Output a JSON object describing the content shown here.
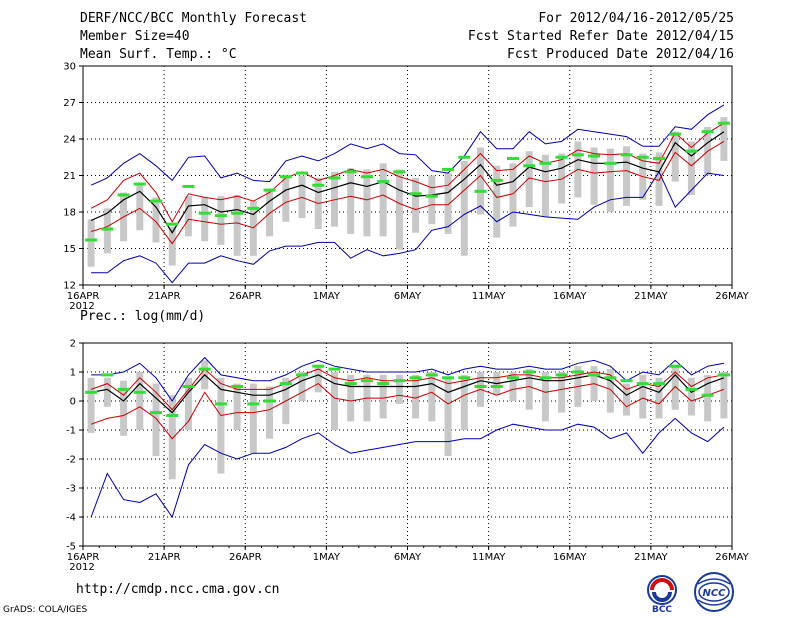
{
  "header": {
    "title": "DERF/NCC/BCC Monthly Forecast",
    "member_size": "Member Size=40",
    "variable": "Mean Surf. Temp.: °C",
    "period": "For 2012/04/16-2012/05/25",
    "refer_date": "Fcst Started Refer Date 2012/04/15",
    "produced_date": "Fcst Produced Date 2012/04/16"
  },
  "footer": {
    "url": "http://cmdp.ncc.cma.gov.cn",
    "credit": "GrADS: COLA/IGES",
    "logo_bcc": "BCC",
    "logo_ncc": "NCC"
  },
  "colors": {
    "envelope": "#0000aa",
    "spread": "#cc0000",
    "mean": "#000000",
    "box": "#c8c8c8",
    "marker": "#33dd33"
  },
  "chart_data": [
    {
      "type": "box-ensemble",
      "title": "Mean Surf. Temp.: °C",
      "ylim": [
        12,
        30
      ],
      "yticks": [
        12,
        15,
        18,
        21,
        24,
        27,
        30
      ],
      "xlabels": [
        "16APR",
        "21APR",
        "26APR",
        "1MAY",
        "6MAY",
        "11MAY",
        "16MAY",
        "21MAY",
        "26MAY"
      ],
      "year_label": "2012",
      "days": 40,
      "series": {
        "max": [
          20.2,
          20.8,
          22.0,
          22.8,
          21.8,
          20.6,
          22.5,
          22.6,
          20.8,
          21.2,
          20.6,
          20.5,
          22.2,
          22.6,
          22.2,
          22.8,
          23.6,
          23.2,
          23.6,
          22.8,
          22.7,
          21.4,
          21.2,
          22.6,
          24.6,
          23.2,
          23.2,
          24.6,
          23.6,
          23.8,
          24.8,
          24.6,
          24.4,
          24.2,
          23.4,
          23.4,
          25.0,
          24.8,
          26.0,
          26.8
        ],
        "upper": [
          18.3,
          19.0,
          20.6,
          21.2,
          19.6,
          17.2,
          19.5,
          19.2,
          19.0,
          19.3,
          18.9,
          19.6,
          20.8,
          21.3,
          20.6,
          21.0,
          21.5,
          21.2,
          21.5,
          20.9,
          20.5,
          20.0,
          20.2,
          21.5,
          22.8,
          21.4,
          21.5,
          22.6,
          22.0,
          22.3,
          23.1,
          22.8,
          22.7,
          22.8,
          22.2,
          22.0,
          24.5,
          23.3,
          24.5,
          25.3
        ],
        "mean": [
          17.3,
          17.9,
          19.0,
          19.7,
          18.4,
          16.3,
          18.5,
          18.6,
          18.0,
          18.2,
          17.8,
          18.9,
          19.8,
          20.2,
          19.6,
          20.0,
          20.4,
          20.1,
          20.5,
          19.8,
          19.3,
          19.4,
          19.6,
          20.7,
          21.9,
          20.2,
          20.5,
          21.7,
          21.3,
          21.6,
          22.3,
          22.0,
          22.0,
          22.1,
          21.6,
          21.3,
          23.7,
          22.6,
          23.7,
          24.6
        ],
        "lower": [
          16.4,
          16.8,
          17.6,
          18.3,
          17.2,
          15.4,
          17.4,
          17.2,
          17.0,
          17.1,
          16.7,
          17.9,
          18.8,
          19.2,
          18.7,
          19.0,
          19.3,
          19.0,
          19.4,
          18.7,
          18.2,
          18.6,
          18.6,
          19.8,
          21.0,
          19.2,
          19.5,
          20.8,
          20.5,
          20.7,
          21.5,
          21.2,
          21.3,
          21.4,
          20.9,
          20.6,
          22.9,
          21.8,
          23.0,
          23.8
        ],
        "min": [
          13.0,
          13.0,
          14.0,
          14.4,
          13.8,
          12.2,
          13.8,
          13.8,
          14.4,
          14.0,
          13.7,
          14.8,
          15.2,
          15.2,
          15.5,
          15.5,
          14.2,
          14.9,
          14.4,
          14.6,
          14.9,
          16.5,
          16.8,
          17.8,
          18.5,
          17.2,
          18.0,
          17.8,
          17.6,
          17.5,
          17.4,
          18.4,
          19.0,
          19.2,
          19.2,
          21.3,
          18.4,
          19.8,
          21.2,
          21.0
        ],
        "q_hi": [
          17.4,
          18.3,
          19.6,
          20.3,
          19.2,
          16.8,
          19.3,
          19.2,
          19.3,
          19.4,
          18.9,
          19.8,
          20.8,
          21.0,
          20.8,
          21.3,
          21.6,
          21.5,
          22.0,
          21.5,
          20.8,
          21.0,
          21.2,
          22.2,
          23.3,
          21.8,
          22.0,
          23.0,
          22.7,
          22.8,
          23.8,
          23.3,
          23.2,
          23.4,
          22.8,
          22.9,
          24.6,
          23.8,
          25.0,
          25.8
        ],
        "q_lo": [
          13.5,
          14.6,
          15.6,
          16.5,
          15.5,
          13.6,
          16.0,
          15.6,
          15.3,
          14.4,
          14.4,
          16.0,
          17.2,
          17.5,
          16.6,
          16.8,
          16.2,
          16.0,
          16.0,
          14.9,
          16.3,
          17.0,
          16.2,
          14.4,
          17.8,
          15.9,
          16.8,
          18.4,
          17.6,
          18.7,
          19.2,
          18.6,
          18.0,
          18.5,
          19.0,
          18.5,
          20.5,
          19.4,
          21.0,
          22.2
        ],
        "marker": [
          15.7,
          16.6,
          19.4,
          20.3,
          18.9,
          17.0,
          20.1,
          17.9,
          17.7,
          17.9,
          18.3,
          19.8,
          20.9,
          21.2,
          20.2,
          20.8,
          21.3,
          20.9,
          20.5,
          21.3,
          19.5,
          19.3,
          21.5,
          22.5,
          19.7,
          20.6,
          22.4,
          21.8,
          22.0,
          22.5,
          22.7,
          22.6,
          22.0,
          22.7,
          22.5,
          22.4,
          24.4,
          23.0,
          24.6,
          25.3
        ]
      }
    },
    {
      "type": "box-ensemble",
      "title": "Prec.: log(mm/d)",
      "ylim": [
        -5,
        2
      ],
      "yticks": [
        -5,
        -4,
        -3,
        -2,
        -1,
        0,
        1,
        2
      ],
      "xlabels": [
        "16APR",
        "21APR",
        "26APR",
        "1MAY",
        "6MAY",
        "11MAY",
        "16MAY",
        "21MAY",
        "26MAY"
      ],
      "year_label": "2012",
      "days": 40,
      "series": {
        "max": [
          0.9,
          0.9,
          1.0,
          1.3,
          0.8,
          0.0,
          0.9,
          1.5,
          0.9,
          0.8,
          0.7,
          0.7,
          0.9,
          1.2,
          1.4,
          1.2,
          1.1,
          1.0,
          1.0,
          1.0,
          1.0,
          1.1,
          0.9,
          1.1,
          1.2,
          1.1,
          1.1,
          1.2,
          1.1,
          1.1,
          1.3,
          1.4,
          1.2,
          0.7,
          1.0,
          0.9,
          1.4,
          0.9,
          1.2,
          1.3
        ],
        "upper": [
          0.4,
          0.6,
          0.2,
          0.8,
          0.3,
          -0.3,
          0.4,
          1.1,
          0.6,
          0.4,
          0.4,
          0.4,
          0.6,
          0.9,
          1.1,
          0.8,
          0.7,
          0.8,
          0.7,
          0.7,
          0.7,
          0.8,
          0.6,
          0.7,
          0.8,
          0.8,
          0.9,
          0.9,
          0.8,
          0.8,
          0.9,
          1.0,
          0.9,
          0.4,
          0.6,
          0.5,
          1.0,
          0.5,
          0.8,
          0.9
        ],
        "mean": [
          0.3,
          0.4,
          0.0,
          0.6,
          0.1,
          -0.4,
          0.3,
          0.9,
          0.4,
          0.3,
          0.2,
          0.2,
          0.4,
          0.7,
          0.9,
          0.6,
          0.5,
          0.5,
          0.5,
          0.5,
          0.5,
          0.6,
          0.3,
          0.5,
          0.7,
          0.6,
          0.7,
          0.8,
          0.7,
          0.7,
          0.8,
          0.9,
          0.7,
          0.2,
          0.5,
          0.3,
          0.9,
          0.3,
          0.6,
          0.8
        ],
        "lower": [
          -0.8,
          -0.6,
          -0.5,
          -0.2,
          -0.6,
          -1.3,
          -0.7,
          0.3,
          -0.5,
          -0.4,
          -0.4,
          -0.3,
          0.0,
          0.3,
          0.6,
          0.1,
          0.0,
          0.1,
          0.1,
          0.2,
          0.1,
          0.3,
          -0.1,
          0.2,
          0.4,
          0.2,
          0.4,
          0.5,
          0.3,
          0.4,
          0.5,
          0.6,
          0.4,
          -0.2,
          0.1,
          -0.1,
          0.5,
          0.0,
          0.2,
          0.4
        ],
        "min": [
          -4.0,
          -2.5,
          -3.4,
          -3.5,
          -3.2,
          -4.0,
          -2.2,
          -1.5,
          -1.8,
          -2.0,
          -1.8,
          -1.8,
          -1.6,
          -1.3,
          -1.1,
          -1.5,
          -1.8,
          -1.7,
          -1.6,
          -1.5,
          -1.4,
          -1.4,
          -1.4,
          -1.3,
          -1.3,
          -1.0,
          -0.8,
          -0.9,
          -1.0,
          -1.0,
          -0.8,
          -0.9,
          -1.3,
          -1.1,
          -1.8,
          -1.1,
          -0.6,
          -1.1,
          -1.4,
          -0.9
        ],
        "q_hi": [
          0.8,
          0.8,
          0.7,
          1.0,
          0.6,
          0.2,
          0.8,
          1.4,
          0.8,
          0.6,
          0.6,
          0.5,
          0.8,
          1.0,
          1.2,
          1.0,
          0.9,
          0.9,
          0.9,
          0.9,
          0.9,
          1.0,
          0.8,
          0.9,
          1.0,
          1.0,
          1.0,
          1.1,
          1.0,
          1.0,
          1.2,
          1.2,
          1.1,
          0.6,
          0.9,
          0.8,
          1.2,
          0.8,
          0.9,
          1.0
        ],
        "q_lo": [
          -1.1,
          -0.2,
          -1.2,
          -1.0,
          -1.9,
          -2.7,
          -1.0,
          0.4,
          -2.5,
          -1.0,
          -1.8,
          -1.3,
          -0.8,
          0.0,
          0.3,
          -1.0,
          -0.7,
          -0.7,
          -0.6,
          -0.1,
          -0.6,
          -0.7,
          -1.9,
          -1.0,
          -0.2,
          0.2,
          0.0,
          -0.3,
          -0.7,
          -0.4,
          -0.2,
          0.0,
          -0.4,
          -0.5,
          -0.6,
          -0.6,
          -0.3,
          -0.5,
          -0.7,
          -0.6
        ],
        "marker": [
          0.3,
          0.9,
          0.4,
          0.3,
          -0.4,
          -0.5,
          0.5,
          1.1,
          -0.1,
          0.5,
          -0.1,
          0.0,
          0.6,
          0.9,
          1.2,
          1.1,
          0.6,
          0.7,
          0.6,
          0.7,
          0.8,
          0.9,
          0.8,
          0.8,
          0.5,
          0.5,
          0.8,
          1.0,
          0.8,
          0.9,
          1.0,
          0.9,
          0.8,
          0.7,
          0.6,
          0.6,
          1.2,
          0.4,
          0.2,
          0.9
        ]
      }
    }
  ]
}
